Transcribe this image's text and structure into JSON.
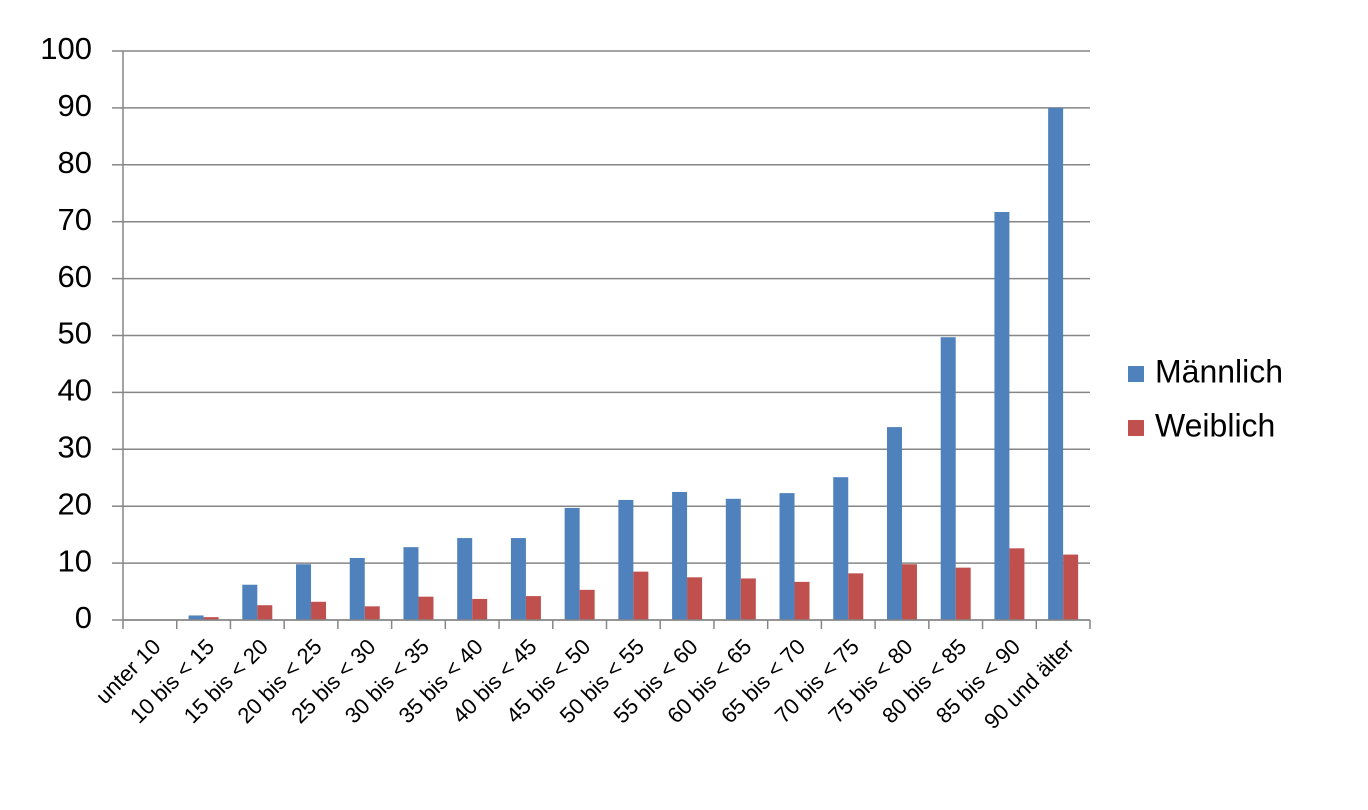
{
  "chart_data": {
    "type": "bar",
    "categories": [
      "unter 10",
      "10 bis < 15",
      "15 bis < 20",
      "20 bis < 25",
      "25 bis < 30",
      "30 bis < 35",
      "35 bis < 40",
      "40 bis < 45",
      "45 bis < 50",
      "50 bis < 55",
      "55 bis < 60",
      "60 bis < 65",
      "65 bis < 70",
      "70 bis < 75",
      "75 bis < 80",
      "80 bis < 85",
      "85 bis < 90",
      "90 und älter"
    ],
    "series": [
      {
        "name": "Männlich",
        "color": "#4f81bd",
        "values": [
          0,
          0.8,
          6.2,
          9.8,
          10.9,
          12.8,
          14.4,
          14.4,
          19.7,
          21.1,
          22.5,
          21.3,
          22.3,
          25.1,
          33.9,
          49.7,
          71.7,
          90.0
        ]
      },
      {
        "name": "Weiblich",
        "color": "#c0504d",
        "values": [
          0,
          0.5,
          2.6,
          3.2,
          2.4,
          4.1,
          3.7,
          4.2,
          5.3,
          8.5,
          7.5,
          7.3,
          6.7,
          8.2,
          9.8,
          9.2,
          12.6,
          11.5
        ]
      }
    ],
    "ylim": [
      0,
      100
    ],
    "yticks": [
      0,
      10,
      20,
      30,
      40,
      50,
      60,
      70,
      80,
      90,
      100
    ],
    "grid": true,
    "legend": "right"
  }
}
